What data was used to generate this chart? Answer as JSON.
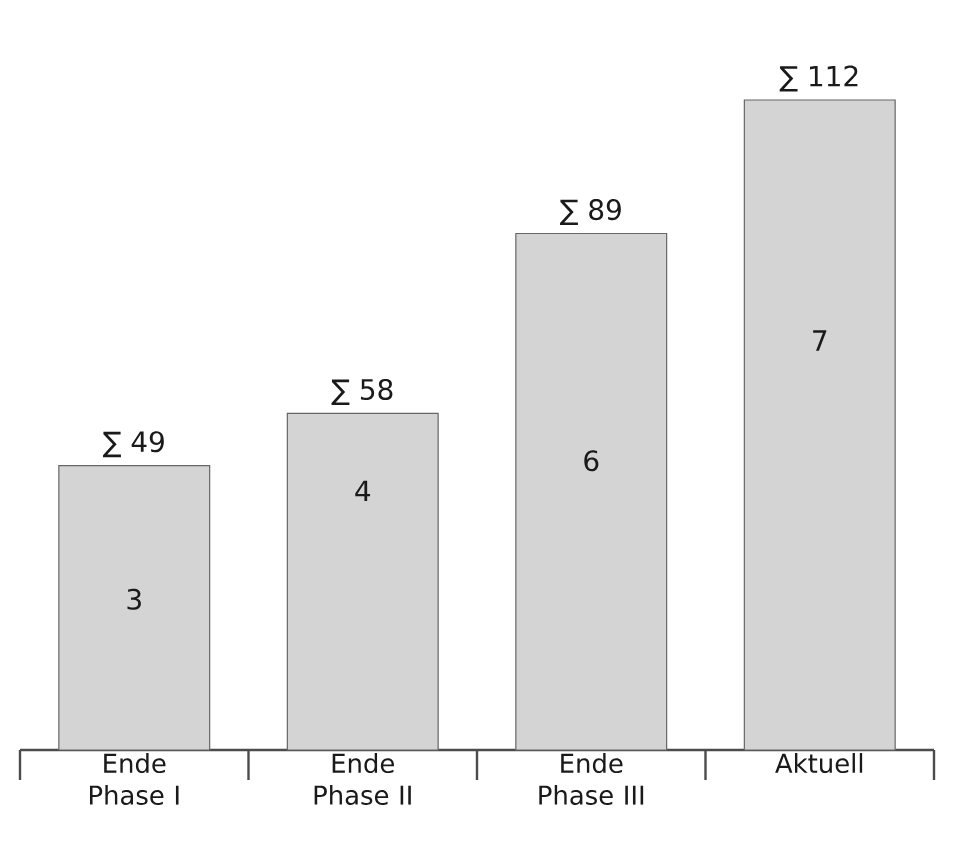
{
  "chart_data": {
    "type": "bar",
    "categories": [
      "Ende Phase I",
      "Ende Phase II",
      "Ende Phase III",
      "Aktuell"
    ],
    "values": [
      49,
      58,
      89,
      112
    ],
    "value_labels": [
      "∑ 49",
      "∑ 58",
      "∑ 89",
      "∑ 112"
    ],
    "color": "#d4d4d4",
    "annotations": [
      "3",
      "4",
      "6",
      "7"
    ]
  }
}
